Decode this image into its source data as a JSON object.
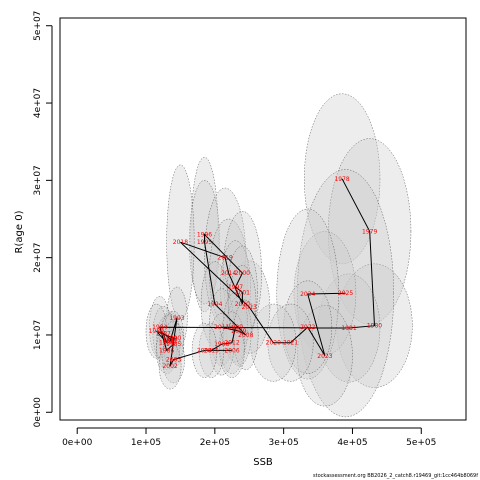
{
  "chart_data": {
    "type": "scatter",
    "xlabel": "SSB",
    "ylabel": "R(age 0)",
    "xlim": [
      -25000,
      565000
    ],
    "ylim": [
      -1000000,
      51000000
    ],
    "x_ticks": [
      0,
      100000,
      200000,
      300000,
      400000,
      500000
    ],
    "x_tick_labels": [
      "0e+00",
      "1e+05",
      "2e+05",
      "3e+05",
      "4e+05",
      "5e+05"
    ],
    "y_ticks": [
      0,
      10000000,
      20000000,
      30000000,
      40000000,
      50000000
    ],
    "y_tick_labels": [
      "0e+00",
      "1e+07",
      "2e+07",
      "3e+07",
      "4e+07",
      "5e+07"
    ],
    "grid": false,
    "colors": {
      "ellipse_fill": "#cccccc",
      "ellipse_border": "#555555",
      "trajectory": "#000000",
      "year_label": "#ff0000"
    },
    "points": [
      {
        "year": "1978",
        "x": 385000,
        "y": 30200000,
        "rx": 55000,
        "ry": 11000000
      },
      {
        "year": "1979",
        "x": 425000,
        "y": 23400000,
        "rx": 60000,
        "ry": 12000000
      },
      {
        "year": "1980",
        "x": 432000,
        "y": 11200000,
        "rx": 55000,
        "ry": 8000000
      },
      {
        "year": "1981",
        "x": 395000,
        "y": 10900000,
        "rx": 45000,
        "ry": 7000000
      },
      {
        "year": "",
        "x": 360000,
        "y": 15400000,
        "rx": 45000,
        "ry": 8000000
      },
      {
        "year": "2025",
        "x": 390000,
        "y": 15400000,
        "rx": 70000,
        "ry": 16000000
      },
      {
        "year": "2024",
        "x": 335000,
        "y": 15300000,
        "rx": 45000,
        "ry": 11000000
      },
      {
        "year": "2023",
        "x": 360000,
        "y": 7300000,
        "rx": 40000,
        "ry": 6500000
      },
      {
        "year": "2022",
        "x": 335000,
        "y": 11000000,
        "rx": 35000,
        "ry": 6000000
      },
      {
        "year": "2021",
        "x": 310000,
        "y": 9000000,
        "rx": 33000,
        "ry": 5000000
      },
      {
        "year": "2020",
        "x": 285000,
        "y": 9000000,
        "rx": 33000,
        "ry": 5000000
      },
      {
        "year": "2013",
        "x": 250000,
        "y": 13600000,
        "rx": 30000,
        "ry": 6000000
      },
      {
        "year": "1996",
        "x": 185000,
        "y": 23000000,
        "rx": 20000,
        "ry": 10000000
      },
      {
        "year": "1995",
        "x": 185000,
        "y": 22000000,
        "rx": 22000,
        "ry": 8000000
      },
      {
        "year": "2018",
        "x": 150000,
        "y": 22000000,
        "rx": 20000,
        "ry": 10000000
      },
      {
        "year": "2019",
        "x": 215000,
        "y": 20000000,
        "rx": 30000,
        "ry": 9000000
      },
      {
        "year": "2014",
        "x": 220000,
        "y": 18000000,
        "rx": 28000,
        "ry": 7000000
      },
      {
        "year": "2000",
        "x": 240000,
        "y": 18000000,
        "rx": 28000,
        "ry": 8000000
      },
      {
        "year": "1997",
        "x": 230000,
        "y": 16200000,
        "rx": 22000,
        "ry": 6000000
      },
      {
        "year": "2001",
        "x": 240000,
        "y": 15500000,
        "rx": 22000,
        "ry": 6000000
      },
      {
        "year": "1994",
        "x": 200000,
        "y": 14000000,
        "rx": 20000,
        "ry": 5500000
      },
      {
        "year": "2010",
        "x": 240000,
        "y": 14000000,
        "rx": 20000,
        "ry": 5000000
      },
      {
        "year": "2011",
        "x": 210000,
        "y": 11000000,
        "rx": 18000,
        "ry": 5000000
      },
      {
        "year": "2009",
        "x": 235000,
        "y": 10500000,
        "rx": 18000,
        "ry": 4500000
      },
      {
        "year": "1999",
        "x": 230000,
        "y": 11000000,
        "rx": 18000,
        "ry": 4500000
      },
      {
        "year": "2012",
        "x": 225000,
        "y": 9000000,
        "rx": 18000,
        "ry": 4000000
      },
      {
        "year": "1998",
        "x": 210000,
        "y": 8800000,
        "rx": 18000,
        "ry": 4000000
      },
      {
        "year": "2008",
        "x": 245000,
        "y": 10000000,
        "rx": 18000,
        "ry": 4500000
      },
      {
        "year": "2006",
        "x": 225000,
        "y": 8000000,
        "rx": 18000,
        "ry": 3500000
      },
      {
        "year": "2015",
        "x": 195000,
        "y": 8000000,
        "rx": 18000,
        "ry": 3500000
      },
      {
        "year": "1993",
        "x": 145000,
        "y": 12200000,
        "rx": 15000,
        "ry": 4000000
      },
      {
        "year": "1984",
        "x": 120000,
        "y": 11000000,
        "rx": 15000,
        "ry": 4000000
      },
      {
        "year": "1983",
        "x": 135000,
        "y": 9500000,
        "rx": 15000,
        "ry": 3500000
      },
      {
        "year": "1987",
        "x": 125000,
        "y": 10200000,
        "rx": 15000,
        "ry": 3500000
      },
      {
        "year": "1988",
        "x": 130000,
        "y": 9000000,
        "rx": 15000,
        "ry": 3500000
      },
      {
        "year": "1989",
        "x": 115000,
        "y": 10500000,
        "rx": 15000,
        "ry": 3500000
      },
      {
        "year": "1990",
        "x": 140000,
        "y": 9600000,
        "rx": 15000,
        "ry": 3500000
      },
      {
        "year": "1991",
        "x": 135000,
        "y": 9200000,
        "rx": 15000,
        "ry": 3500000
      },
      {
        "year": "1986",
        "x": 130000,
        "y": 8000000,
        "rx": 15000,
        "ry": 3000000
      },
      {
        "year": "1985",
        "x": 140000,
        "y": 8800000,
        "rx": 15000,
        "ry": 3000000
      },
      {
        "year": "2003",
        "x": 140000,
        "y": 6800000,
        "rx": 16000,
        "ry": 3000000
      },
      {
        "year": "2002",
        "x": 135000,
        "y": 6000000,
        "rx": 16000,
        "ry": 3000000
      },
      {
        "year": "2004",
        "x": 185000,
        "y": 8000000,
        "rx": 18000,
        "ry": 3500000
      }
    ],
    "trajectory_order": [
      "1978",
      "1979",
      "1980",
      "1981",
      "1984",
      "1986",
      "1985",
      "1983",
      "1987",
      "1988",
      "1989",
      "1990",
      "1991",
      "1993",
      "2002",
      "2003",
      "2004",
      "2006",
      "2015",
      "1998",
      "2012",
      "1999",
      "2011",
      "2009",
      "2008",
      "1994",
      "1995",
      "1996",
      "2000",
      "1997",
      "2001",
      "2010",
      "2014",
      "2019",
      "2018",
      "2013",
      "2020",
      "2021",
      "2022",
      "2023",
      "2024",
      "2025"
    ]
  },
  "footer_text": "stockassessment.org BB2026_2_catch8.r19469_git:1cc464b8069f"
}
